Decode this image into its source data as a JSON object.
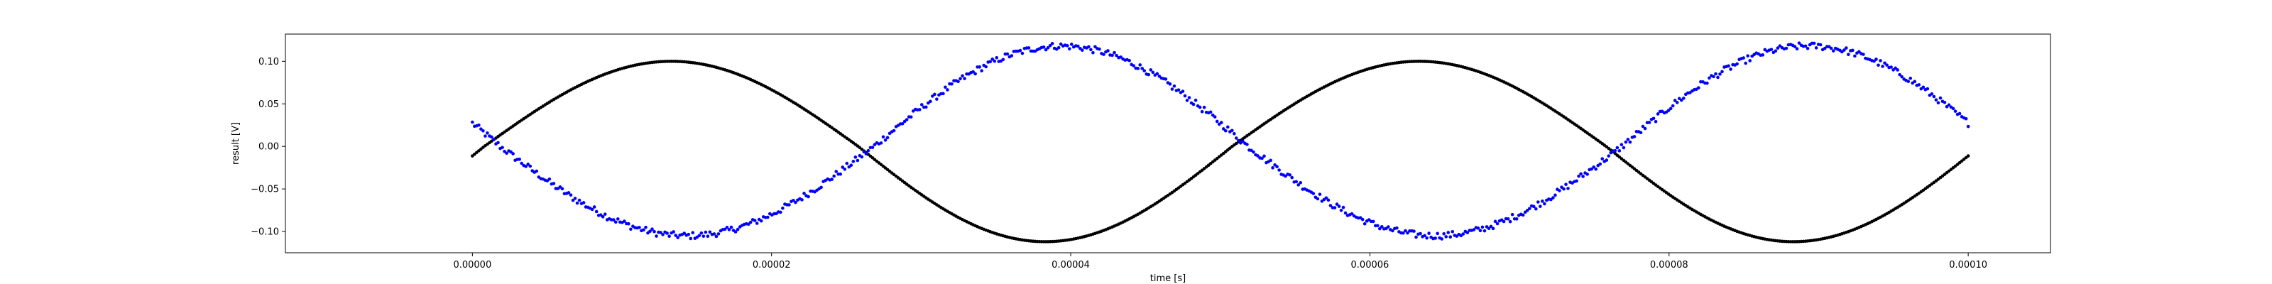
{
  "chart_data": {
    "type": "scatter",
    "title": "",
    "xlabel": "time [s]",
    "ylabel": "result [V]",
    "xlim": [
      -1.25e-05,
      0.0001055
    ],
    "ylim": [
      -0.125,
      0.132
    ],
    "grid": false,
    "legend": "none",
    "x_ticks": [
      {
        "value": 0.0,
        "label": "0.00000"
      },
      {
        "value": 2e-05,
        "label": "0.00002"
      },
      {
        "value": 4e-05,
        "label": "0.00004"
      },
      {
        "value": 6e-05,
        "label": "0.00006"
      },
      {
        "value": 8e-05,
        "label": "0.00008"
      },
      {
        "value": 0.0001,
        "label": "0.00010"
      }
    ],
    "y_ticks": [
      {
        "value": 0.1,
        "label": "0.10"
      },
      {
        "value": 0.05,
        "label": "0.05"
      },
      {
        "value": 0.0,
        "label": "0.00"
      },
      {
        "value": -0.05,
        "label": "−0.05"
      },
      {
        "value": -0.1,
        "label": "−0.10"
      }
    ],
    "series": [
      {
        "color": "#000000",
        "marker": "dot",
        "x_start": 0.0,
        "x_end": 0.0001,
        "point_count": 700,
        "frequency_hz": 20000,
        "amplitude_positive": 0.1,
        "amplitude_negative": 0.112,
        "phase_rad": -0.1,
        "noise": 0.0
      },
      {
        "color": "#0000ff",
        "marker": "dot",
        "x_start": 0.0,
        "x_end": 0.0001,
        "point_count": 700,
        "frequency_hz": 20000,
        "amplitude_positive": 0.118,
        "amplitude_negative": 0.105,
        "phase_rad": -3.375,
        "noise": 0.004
      }
    ]
  }
}
